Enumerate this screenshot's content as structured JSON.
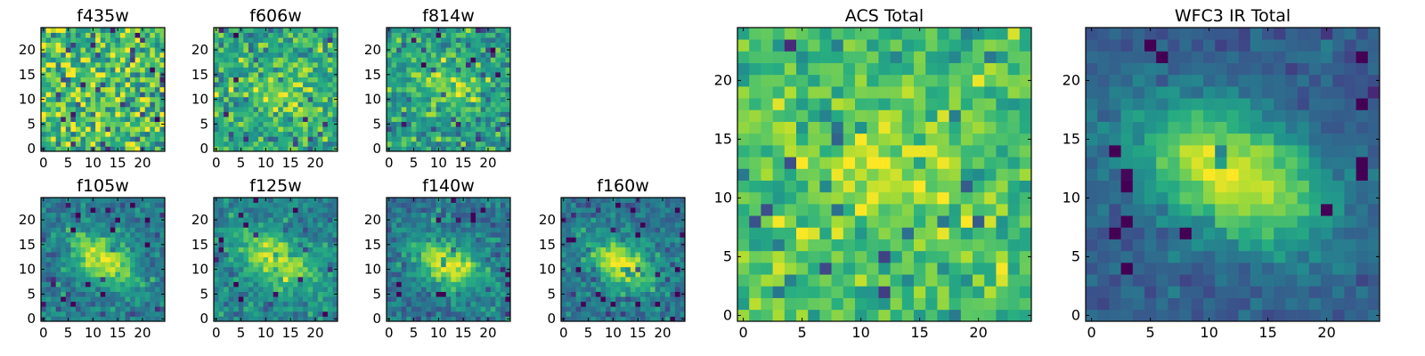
{
  "figure": {
    "colormap": "viridis",
    "colors": {
      "low": "#440154",
      "mid": "#21918c",
      "high": "#fde725"
    }
  },
  "chart_data": [
    {
      "id": "f435w",
      "type": "heatmap",
      "title": "f435w",
      "grid_size": 25,
      "xlim": [
        0,
        24
      ],
      "ylim": [
        0,
        24
      ],
      "xticks": [
        "0",
        "5",
        "10",
        "15",
        "20"
      ],
      "yticks": [
        "0",
        "5",
        "10",
        "15",
        "20"
      ],
      "pattern": "noise",
      "mean": 0.7,
      "noise": 0.2,
      "peak": 0.0,
      "center": [
        12,
        12
      ],
      "sigma": [
        4,
        3
      ],
      "angle": -30,
      "seed": 3
    },
    {
      "id": "f606w",
      "type": "heatmap",
      "title": "f606w",
      "grid_size": 25,
      "xlim": [
        0,
        24
      ],
      "ylim": [
        0,
        24
      ],
      "xticks": [
        "0",
        "5",
        "10",
        "15",
        "20"
      ],
      "yticks": [
        "0",
        "5",
        "10",
        "15",
        "20"
      ],
      "pattern": "faint-blob",
      "mean": 0.62,
      "noise": 0.14,
      "peak": 0.2,
      "center": [
        13,
        12
      ],
      "sigma": [
        5,
        3
      ],
      "angle": -25,
      "seed": 7
    },
    {
      "id": "f814w",
      "type": "heatmap",
      "title": "f814w",
      "grid_size": 25,
      "xlim": [
        0,
        24
      ],
      "ylim": [
        0,
        24
      ],
      "xticks": [
        "0",
        "5",
        "10",
        "15",
        "20"
      ],
      "yticks": [
        "0",
        "5",
        "10",
        "15",
        "20"
      ],
      "pattern": "faint-blob",
      "mean": 0.58,
      "noise": 0.13,
      "peak": 0.25,
      "center": [
        12,
        13
      ],
      "sigma": [
        5,
        3
      ],
      "angle": -20,
      "seed": 11
    },
    {
      "id": "f105w",
      "type": "heatmap",
      "title": "f105w",
      "grid_size": 25,
      "xlim": [
        0,
        24
      ],
      "ylim": [
        0,
        24
      ],
      "xticks": [
        "0",
        "5",
        "10",
        "15",
        "20"
      ],
      "yticks": [
        "0",
        "5",
        "10",
        "15",
        "20"
      ],
      "pattern": "blob",
      "mean": 0.42,
      "noise": 0.09,
      "peak": 0.55,
      "center": [
        12,
        12
      ],
      "sigma": [
        5,
        3
      ],
      "angle": -30,
      "seed": 13
    },
    {
      "id": "f125w",
      "type": "heatmap",
      "title": "f125w",
      "grid_size": 25,
      "xlim": [
        0,
        24
      ],
      "ylim": [
        0,
        24
      ],
      "xticks": [
        "0",
        "5",
        "10",
        "15",
        "20"
      ],
      "yticks": [
        "0",
        "5",
        "10",
        "15",
        "20"
      ],
      "pattern": "blob",
      "mean": 0.45,
      "noise": 0.09,
      "peak": 0.5,
      "center": [
        12,
        12
      ],
      "sigma": [
        6,
        3
      ],
      "angle": -30,
      "seed": 17
    },
    {
      "id": "f140w",
      "type": "heatmap",
      "title": "f140w",
      "grid_size": 25,
      "xlim": [
        0,
        24
      ],
      "ylim": [
        0,
        24
      ],
      "xticks": [
        "0",
        "5",
        "10",
        "15",
        "20"
      ],
      "yticks": [
        "0",
        "5",
        "10",
        "15",
        "20"
      ],
      "pattern": "blob",
      "mean": 0.4,
      "noise": 0.09,
      "peak": 0.58,
      "center": [
        12,
        11
      ],
      "sigma": [
        5,
        3
      ],
      "angle": -25,
      "seed": 19
    },
    {
      "id": "f160w",
      "type": "heatmap",
      "title": "f160w",
      "grid_size": 25,
      "xlim": [
        0,
        24
      ],
      "ylim": [
        0,
        24
      ],
      "xticks": [
        "0",
        "5",
        "10",
        "15",
        "20"
      ],
      "yticks": [
        "0",
        "5",
        "10",
        "15",
        "20"
      ],
      "pattern": "blob",
      "mean": 0.38,
      "noise": 0.09,
      "peak": 0.6,
      "center": [
        12,
        11
      ],
      "sigma": [
        5,
        3
      ],
      "angle": -30,
      "seed": 23
    },
    {
      "id": "acs-total",
      "type": "heatmap",
      "title": "ACS Total",
      "grid_size": 25,
      "xlim": [
        0,
        24
      ],
      "ylim": [
        0,
        24
      ],
      "xticks": [
        "0",
        "5",
        "10",
        "15",
        "20"
      ],
      "yticks": [
        "0",
        "5",
        "10",
        "15",
        "20"
      ],
      "pattern": "faint-blob",
      "mean": 0.7,
      "noise": 0.11,
      "peak": 0.18,
      "center": [
        12,
        12
      ],
      "sigma": [
        5,
        3
      ],
      "angle": -20,
      "seed": 29
    },
    {
      "id": "wfc3-ir-total",
      "type": "heatmap",
      "title": "WFC3 IR Total",
      "grid_size": 25,
      "xlim": [
        0,
        24
      ],
      "ylim": [
        0,
        24
      ],
      "xticks": [
        "0",
        "5",
        "10",
        "15",
        "20"
      ],
      "yticks": [
        "0",
        "5",
        "10",
        "15",
        "20"
      ],
      "pattern": "blob",
      "mean": 0.3,
      "noise": 0.05,
      "peak": 0.68,
      "center": [
        12,
        12
      ],
      "sigma": [
        6,
        3.5
      ],
      "angle": -28,
      "seed": 31
    }
  ]
}
